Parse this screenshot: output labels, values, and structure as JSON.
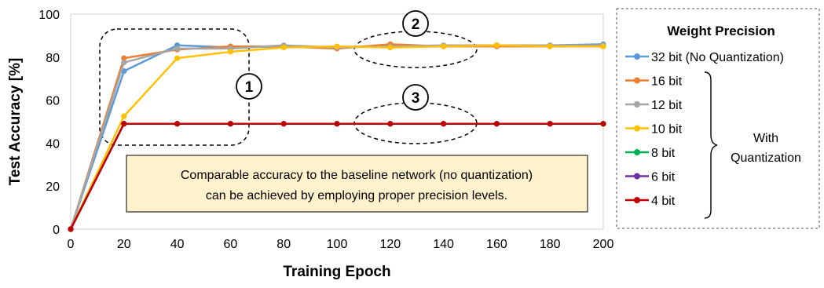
{
  "chart_data": {
    "type": "line",
    "xlabel": "Training Epoch",
    "ylabel": "Test Accuracy [%]",
    "xlim": [
      0,
      200
    ],
    "ylim": [
      0,
      100
    ],
    "x_ticks": [
      0,
      20,
      40,
      60,
      80,
      100,
      120,
      140,
      160,
      180,
      200
    ],
    "y_ticks": [
      0,
      20,
      40,
      60,
      80,
      100
    ],
    "grid": false,
    "x": [
      0,
      20,
      40,
      60,
      80,
      100,
      120,
      140,
      160,
      180,
      200
    ],
    "series": [
      {
        "name": "32 bit (No Quantization)",
        "color": "#5b9bd5",
        "values": [
          0,
          73.5,
          85.5,
          84.5,
          85.0,
          84.5,
          85.5,
          85.0,
          85.5,
          85.5,
          86.0
        ]
      },
      {
        "name": "16 bit",
        "color": "#ed7d31",
        "values": [
          0,
          79.5,
          83.5,
          85.0,
          85.0,
          84.0,
          86.0,
          85.0,
          85.0,
          85.0,
          85.0
        ]
      },
      {
        "name": "12 bit",
        "color": "#a5a5a5",
        "values": [
          0,
          77.5,
          84.0,
          84.0,
          85.5,
          84.5,
          85.0,
          85.5,
          85.5,
          85.5,
          85.5
        ]
      },
      {
        "name": "10 bit",
        "color": "#ffc000",
        "values": [
          0,
          52.5,
          79.5,
          82.5,
          84.5,
          85.0,
          84.5,
          85.0,
          85.5,
          85.0,
          85.0
        ]
      },
      {
        "name": "8 bit",
        "color": "#00b050",
        "values": [
          0,
          49,
          49,
          49,
          49,
          49,
          49,
          49,
          49,
          49,
          49
        ]
      },
      {
        "name": "6 bit",
        "color": "#7030a0",
        "values": [
          0,
          49,
          49,
          49,
          49,
          49,
          49,
          49,
          49,
          49,
          49
        ]
      },
      {
        "name": "4 bit",
        "color": "#c00000",
        "values": [
          0,
          49,
          49,
          49,
          49,
          49,
          49,
          49,
          49,
          49,
          49
        ]
      }
    ],
    "legend": {
      "title": "Weight Precision",
      "placement": "right",
      "group_label": [
        "With",
        "Quantization"
      ]
    },
    "annotations": {
      "note": [
        "Comparable accuracy to the baseline network (no quantization)",
        "can be achieved by employing proper precision levels."
      ],
      "markers": [
        "1",
        "2",
        "3"
      ]
    }
  }
}
